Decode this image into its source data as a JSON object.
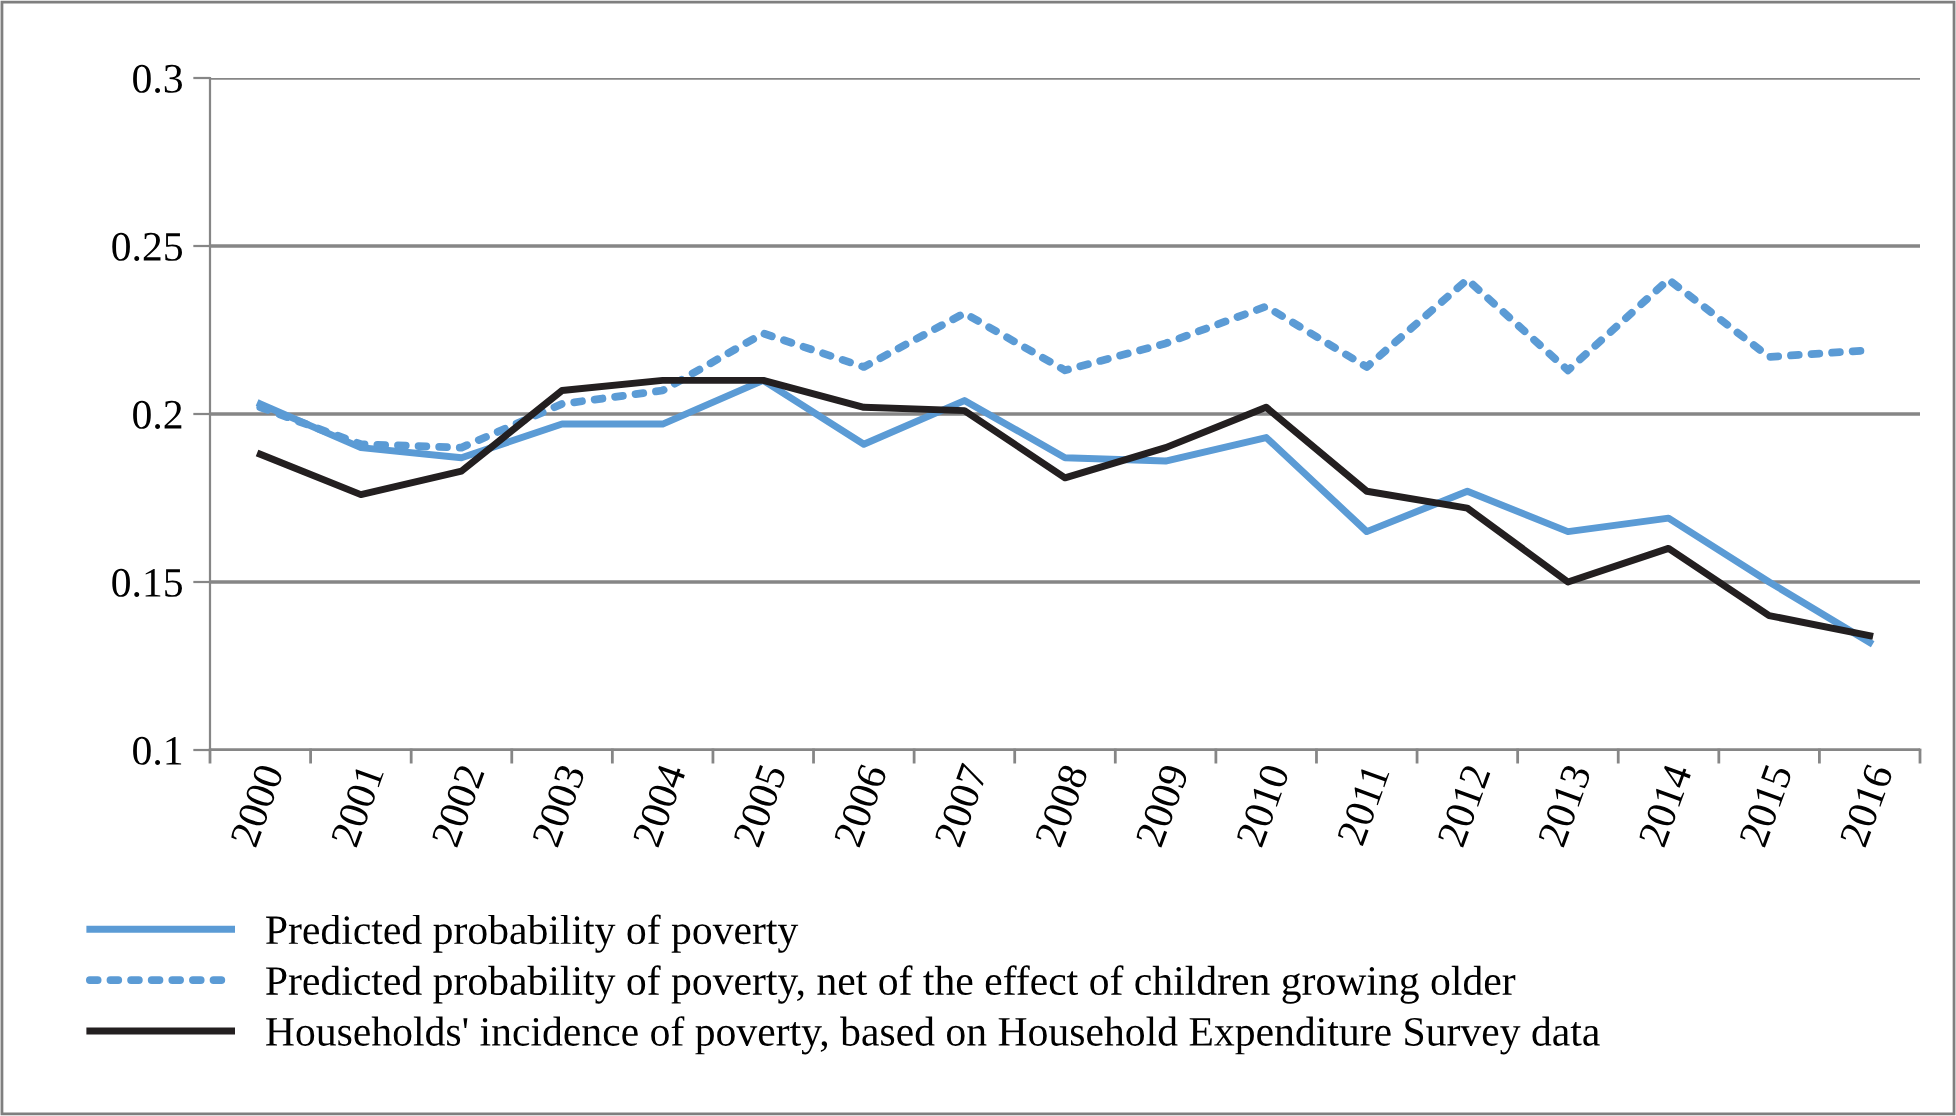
{
  "chart_data": {
    "type": "line",
    "categories": [
      "2000",
      "2001",
      "2002",
      "2003",
      "2004",
      "2005",
      "2006",
      "2007",
      "2008",
      "2009",
      "2010",
      "2011",
      "2012",
      "2013",
      "2014",
      "2015",
      "2016"
    ],
    "series": [
      {
        "name": "Predicted probability of poverty",
        "color": "#5b9bd5",
        "line_style": "solid",
        "values": [
          0.203,
          0.19,
          0.187,
          0.197,
          0.197,
          0.21,
          0.191,
          0.204,
          0.187,
          0.186,
          0.193,
          0.165,
          0.177,
          0.165,
          0.169,
          0.15,
          0.132
        ]
      },
      {
        "name": "Predicted probability of poverty, net of the effect of children growing older",
        "color": "#5b9bd5",
        "line_style": "dotted",
        "values": [
          0.202,
          0.191,
          0.19,
          0.203,
          0.207,
          0.224,
          0.214,
          0.23,
          0.213,
          0.221,
          0.232,
          0.214,
          0.24,
          0.213,
          0.24,
          0.217,
          0.219
        ]
      },
      {
        "name": "Households' incidence of poverty, based on Household Expenditure Survey data",
        "color": "#231f20",
        "line_style": "solid",
        "values": [
          0.188,
          0.176,
          0.183,
          0.207,
          0.21,
          0.21,
          0.202,
          0.201,
          0.181,
          0.19,
          0.202,
          0.177,
          0.172,
          0.15,
          0.16,
          0.14,
          0.134
        ]
      }
    ],
    "ylim": [
      0.1,
      0.3
    ],
    "yticks": [
      0.1,
      0.15,
      0.2,
      0.25,
      0.3
    ],
    "grid": "y",
    "legend": "bottom",
    "marker": "none"
  }
}
